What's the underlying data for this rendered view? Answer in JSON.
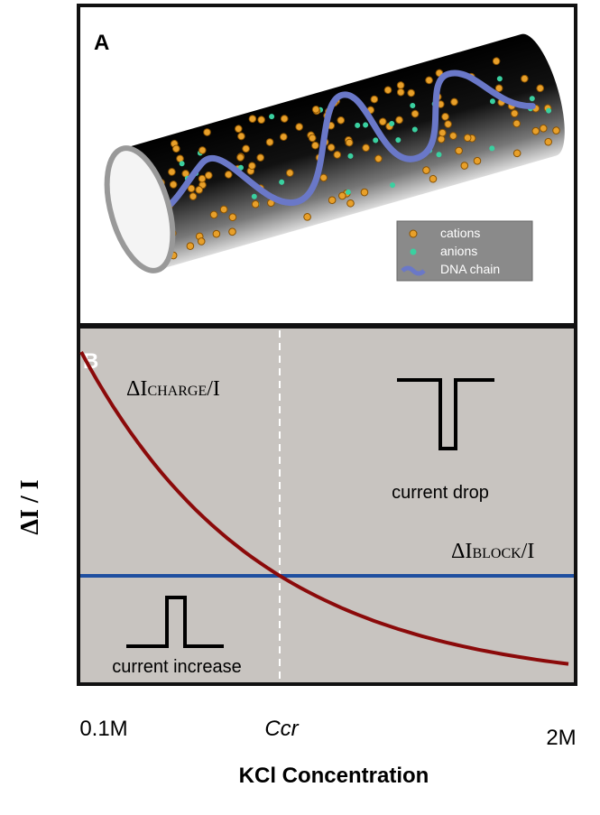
{
  "panel_a": {
    "letter": "A",
    "legend": [
      "cations",
      "anions",
      "DNA chain"
    ]
  },
  "panel_b": {
    "letter": "B",
    "charge_label": {
      "main": "ΔI",
      "small": "CHARGE",
      "tail": "/I"
    },
    "block_label": {
      "main": "ΔI",
      "small": "BLOCK",
      "tail": "/I"
    },
    "drop_label": "current drop",
    "increase_label": "current increase",
    "y_label": "ΔI / I",
    "x_labels": [
      "0.1M",
      "Ccr",
      "2M"
    ],
    "x_title": "KCl Concentration"
  }
}
